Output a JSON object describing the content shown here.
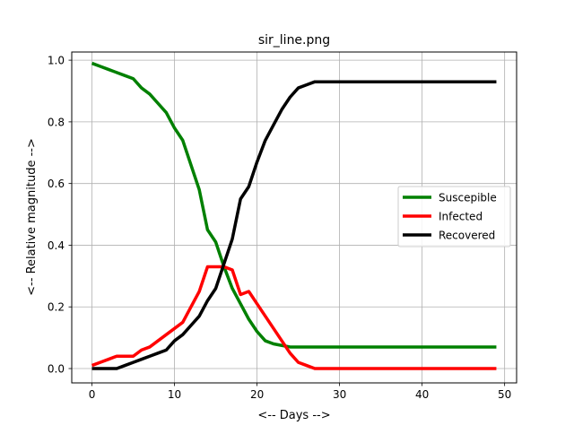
{
  "chart_data": {
    "type": "line",
    "title": "sir_line.png",
    "xlabel": "<-- Days -->",
    "ylabel": "<-- Relative magnitude -->",
    "xlim": [
      -2.45,
      51.45
    ],
    "ylim": [
      -0.0465,
      1.0265
    ],
    "xticks": [
      0,
      10,
      20,
      30,
      40,
      50
    ],
    "yticks": [
      0.0,
      0.2,
      0.4,
      0.6,
      0.8,
      1.0
    ],
    "xtick_labels": [
      "0",
      "10",
      "20",
      "30",
      "40",
      "50"
    ],
    "ytick_labels": [
      "0.0",
      "0.2",
      "0.4",
      "0.6",
      "0.8",
      "1.0"
    ],
    "grid": true,
    "legend_position": "center-right",
    "x": [
      0,
      1,
      2,
      3,
      4,
      5,
      6,
      7,
      8,
      9,
      10,
      11,
      12,
      13,
      14,
      15,
      16,
      17,
      18,
      19,
      20,
      21,
      22,
      23,
      24,
      25,
      26,
      27,
      28,
      29,
      30,
      31,
      32,
      33,
      34,
      35,
      36,
      37,
      38,
      39,
      40,
      41,
      42,
      43,
      44,
      45,
      46,
      47,
      48,
      49
    ],
    "series": [
      {
        "name": "Suscepible",
        "color": "#008000",
        "values": [
          0.99,
          0.98,
          0.97,
          0.96,
          0.95,
          0.94,
          0.91,
          0.89,
          0.86,
          0.83,
          0.78,
          0.74,
          0.66,
          0.58,
          0.45,
          0.41,
          0.33,
          0.26,
          0.21,
          0.16,
          0.12,
          0.09,
          0.08,
          0.075,
          0.07,
          0.07,
          0.07,
          0.07,
          0.07,
          0.07,
          0.07,
          0.07,
          0.07,
          0.07,
          0.07,
          0.07,
          0.07,
          0.07,
          0.07,
          0.07,
          0.07,
          0.07,
          0.07,
          0.07,
          0.07,
          0.07,
          0.07,
          0.07,
          0.07,
          0.07
        ]
      },
      {
        "name": "Infected",
        "color": "#ff0000",
        "values": [
          0.01,
          0.02,
          0.03,
          0.04,
          0.04,
          0.04,
          0.06,
          0.07,
          0.09,
          0.11,
          0.13,
          0.15,
          0.2,
          0.25,
          0.33,
          0.33,
          0.33,
          0.32,
          0.24,
          0.25,
          0.21,
          0.17,
          0.13,
          0.09,
          0.05,
          0.02,
          0.01,
          0.0,
          0.0,
          0.0,
          0.0,
          0.0,
          0.0,
          0.0,
          0.0,
          0.0,
          0.0,
          0.0,
          0.0,
          0.0,
          0.0,
          0.0,
          0.0,
          0.0,
          0.0,
          0.0,
          0.0,
          0.0,
          0.0,
          0.0
        ]
      },
      {
        "name": "Recovered",
        "color": "#000000",
        "values": [
          0.0,
          0.0,
          0.0,
          0.0,
          0.01,
          0.02,
          0.03,
          0.04,
          0.05,
          0.06,
          0.09,
          0.11,
          0.14,
          0.17,
          0.22,
          0.26,
          0.34,
          0.42,
          0.55,
          0.59,
          0.67,
          0.74,
          0.79,
          0.84,
          0.88,
          0.91,
          0.92,
          0.93,
          0.93,
          0.93,
          0.93,
          0.93,
          0.93,
          0.93,
          0.93,
          0.93,
          0.93,
          0.93,
          0.93,
          0.93,
          0.93,
          0.93,
          0.93,
          0.93,
          0.93,
          0.93,
          0.93,
          0.93,
          0.93,
          0.93
        ]
      }
    ]
  }
}
